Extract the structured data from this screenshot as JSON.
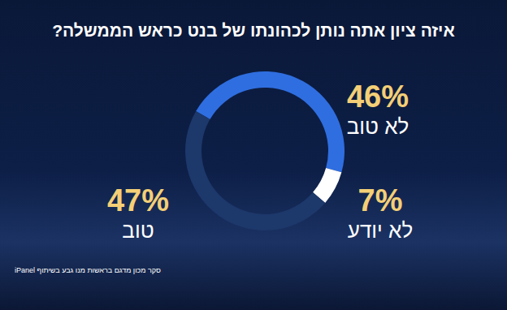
{
  "chart_data": {
    "type": "pie",
    "title": "איזה ציון אתה נותן לכהונתו של בנט כראש הממשלה?",
    "categories": [
      "לא טוב",
      "לא יודע",
      "טוב"
    ],
    "values": [
      46,
      7,
      47
    ],
    "value_labels": [
      "46%",
      "7%",
      "47%"
    ],
    "data_labels": true,
    "colors": [
      "#2f6ee0",
      "#ffffff",
      "#1d386b"
    ],
    "source": "סקר מכון מדגם בראשות מנו גבע בשיתוף iPanel"
  }
}
